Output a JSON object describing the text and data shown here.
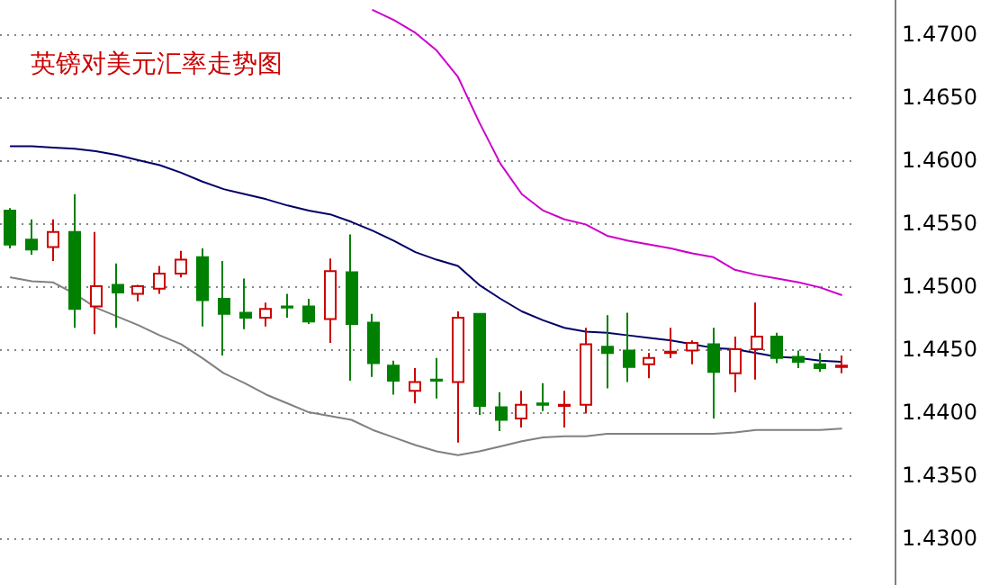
{
  "chart_data": {
    "type": "candlestick",
    "title": "英镑对美元汇率走势图",
    "categories": [
      null,
      null,
      null,
      null,
      null,
      null,
      null,
      null,
      null,
      null,
      null,
      null,
      null,
      null,
      null,
      null,
      null,
      null,
      null,
      null,
      null,
      null,
      null,
      null,
      null,
      null,
      null,
      null,
      null,
      null,
      null,
      null,
      null,
      null,
      null,
      null,
      null,
      null,
      null,
      null
    ],
    "ohlc": [
      [
        1.456,
        1.4562,
        1.453,
        1.4533
      ],
      [
        1.4537,
        1.4553,
        1.4525,
        1.4529
      ],
      [
        1.4531,
        1.4553,
        1.452,
        1.4543
      ],
      [
        1.4543,
        1.4573,
        1.4467,
        1.4482
      ],
      [
        1.4484,
        1.4543,
        1.4462,
        1.45
      ],
      [
        1.4501,
        1.4518,
        1.4467,
        1.4495
      ],
      [
        1.4494,
        1.4501,
        1.4488,
        1.45
      ],
      [
        1.4498,
        1.4516,
        1.4494,
        1.451
      ],
      [
        1.451,
        1.4528,
        1.4507,
        1.4521
      ],
      [
        1.4523,
        1.453,
        1.4468,
        1.4489
      ],
      [
        1.449,
        1.452,
        1.4445,
        1.4478
      ],
      [
        1.4479,
        1.4506,
        1.4466,
        1.4475
      ],
      [
        1.4475,
        1.4487,
        1.4468,
        1.4482
      ],
      [
        1.4484,
        1.4494,
        1.4475,
        1.4483
      ],
      [
        1.4484,
        1.449,
        1.447,
        1.4472
      ],
      [
        1.4474,
        1.4522,
        1.4455,
        1.4512
      ],
      [
        1.4511,
        1.4541,
        1.4425,
        1.447
      ],
      [
        1.4471,
        1.4478,
        1.4428,
        1.4439
      ],
      [
        1.4437,
        1.4441,
        1.4414,
        1.4425
      ],
      [
        1.4417,
        1.4435,
        1.4407,
        1.4424
      ],
      [
        1.4426,
        1.4443,
        1.4411,
        1.4425
      ],
      [
        1.4424,
        1.448,
        1.4376,
        1.4475
      ],
      [
        1.4478,
        1.4478,
        1.4398,
        1.4405
      ],
      [
        1.4404,
        1.4416,
        1.4385,
        1.4394
      ],
      [
        1.4395,
        1.4417,
        1.4388,
        1.4406
      ],
      [
        1.4407,
        1.4423,
        1.4401,
        1.4406
      ],
      [
        1.4405,
        1.4417,
        1.4388,
        1.4406
      ],
      [
        1.4406,
        1.4467,
        1.4399,
        1.4454
      ],
      [
        1.4452,
        1.4477,
        1.4419,
        1.4447
      ],
      [
        1.4449,
        1.4479,
        1.4424,
        1.4436
      ],
      [
        1.4438,
        1.4447,
        1.4427,
        1.4443
      ],
      [
        1.4447,
        1.4467,
        1.4443,
        1.4448
      ],
      [
        1.4449,
        1.4457,
        1.4438,
        1.4455
      ],
      [
        1.4454,
        1.4467,
        1.4395,
        1.4432
      ],
      [
        1.4431,
        1.446,
        1.4416,
        1.445
      ],
      [
        1.445,
        1.4487,
        1.4426,
        1.446
      ],
      [
        1.446,
        1.4463,
        1.4439,
        1.4443
      ],
      [
        1.4444,
        1.4449,
        1.4435,
        1.444
      ],
      [
        1.4438,
        1.4447,
        1.4432,
        1.4435
      ],
      [
        1.4436,
        1.4445,
        1.4431,
        1.4437
      ]
    ],
    "series": [
      {
        "type": "line",
        "color": "#cc00cc",
        "values": [
          null,
          null,
          null,
          null,
          null,
          null,
          null,
          null,
          null,
          null,
          null,
          null,
          null,
          null,
          null,
          null,
          null,
          1.4719,
          1.4711,
          1.4701,
          1.4687,
          1.4666,
          1.463,
          1.4597,
          1.4573,
          1.456,
          1.4553,
          1.4549,
          1.454,
          1.4536,
          1.4533,
          1.453,
          1.4526,
          1.4523,
          1.4513,
          1.4509,
          1.4506,
          1.4503,
          1.4499,
          1.4493
        ]
      },
      {
        "type": "line",
        "color": "#000066",
        "values": [
          1.4611,
          1.4611,
          1.461,
          1.4609,
          1.4607,
          1.4604,
          1.46,
          1.4596,
          1.459,
          1.4583,
          1.4577,
          1.4573,
          1.4569,
          1.4564,
          1.456,
          1.4557,
          1.4551,
          1.4544,
          1.4536,
          1.4527,
          1.4521,
          1.4516,
          1.4501,
          1.449,
          1.448,
          1.4473,
          1.4467,
          1.4464,
          1.4463,
          1.4461,
          1.4459,
          1.4457,
          1.4454,
          1.4451,
          1.445,
          1.4447,
          1.4444,
          1.4443,
          1.4441,
          1.444
        ]
      },
      {
        "type": "line",
        "color": "#808080",
        "values": [
          1.4507,
          1.4504,
          1.4503,
          1.4494,
          1.4483,
          1.4476,
          1.4469,
          1.4461,
          1.4454,
          1.4443,
          1.4431,
          1.4423,
          1.4414,
          1.4407,
          1.44,
          1.4397,
          1.4394,
          1.4386,
          1.438,
          1.4374,
          1.4369,
          1.4366,
          1.4369,
          1.4373,
          1.4377,
          1.438,
          1.4381,
          1.4381,
          1.4383,
          1.4383,
          1.4383,
          1.4383,
          1.4383,
          1.4383,
          1.4384,
          1.4386,
          1.4386,
          1.4386,
          1.4386,
          1.4387
        ]
      }
    ],
    "ylim": [
      1.4263,
      1.4727
    ],
    "yticks": [
      {
        "value": 1.43,
        "label": "1.4300"
      },
      {
        "value": 1.435,
        "label": "1.4350"
      },
      {
        "value": 1.44,
        "label": "1.4400"
      },
      {
        "value": 1.445,
        "label": "1.4450"
      },
      {
        "value": 1.45,
        "label": "1.4500"
      },
      {
        "value": 1.455,
        "label": "1.4550"
      },
      {
        "value": 1.46,
        "label": "1.4600"
      },
      {
        "value": 1.465,
        "label": "1.4650"
      },
      {
        "value": 1.47,
        "label": "1.4700"
      }
    ],
    "grid": "y",
    "tick_labels": "y",
    "marker": "none"
  }
}
